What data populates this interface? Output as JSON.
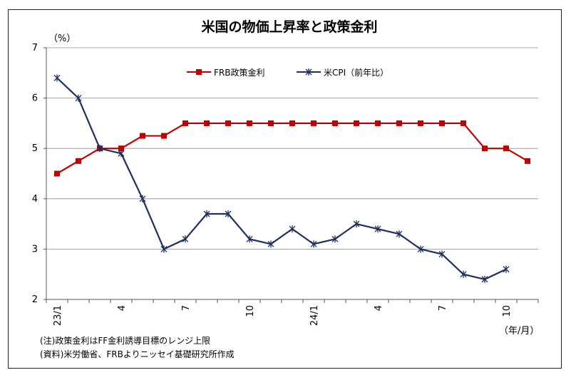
{
  "chart_data": {
    "type": "line",
    "title": "米国の物価上昇率と政策金利",
    "ylabel": "（%）",
    "xlabel": "（年/月）",
    "ylim": [
      2,
      7
    ],
    "yticks": [
      "2",
      "3",
      "4",
      "5",
      "6",
      "7"
    ],
    "xticks": [
      {
        "index": 0,
        "label": "23/1",
        "rotated": true
      },
      {
        "index": 3,
        "label": "4",
        "rotated": true
      },
      {
        "index": 6,
        "label": "7",
        "rotated": true
      },
      {
        "index": 9,
        "label": "10",
        "rotated": true
      },
      {
        "index": 12,
        "label": "24/1",
        "rotated": true
      },
      {
        "index": 15,
        "label": "4",
        "rotated": true
      },
      {
        "index": 18,
        "label": "7",
        "rotated": true
      },
      {
        "index": 21,
        "label": "10",
        "rotated": true
      }
    ],
    "x_count": 23,
    "grid": true,
    "legend_position": "top",
    "series": [
      {
        "name": "FRB政策金利",
        "color": "#c00000",
        "marker": "square",
        "values": [
          4.5,
          4.75,
          5.0,
          5.0,
          5.25,
          5.25,
          5.5,
          5.5,
          5.5,
          5.5,
          5.5,
          5.5,
          5.5,
          5.5,
          5.5,
          5.5,
          5.5,
          5.5,
          5.5,
          5.5,
          5.0,
          5.0,
          4.75
        ]
      },
      {
        "name": "米CPI（前年比）",
        "color": "#1f2f5f",
        "marker": "star",
        "values": [
          6.4,
          6.0,
          5.0,
          4.9,
          4.0,
          3.0,
          3.2,
          3.7,
          3.7,
          3.2,
          3.1,
          3.4,
          3.1,
          3.2,
          3.5,
          3.4,
          3.3,
          3.0,
          2.9,
          2.5,
          2.4,
          2.6,
          null
        ]
      }
    ]
  },
  "notes": [
    "(注)政策金利はFF金利誘導目標のレンジ上限",
    "(資料)米労働省、FRBよりニッセイ基礎研究所作成"
  ]
}
